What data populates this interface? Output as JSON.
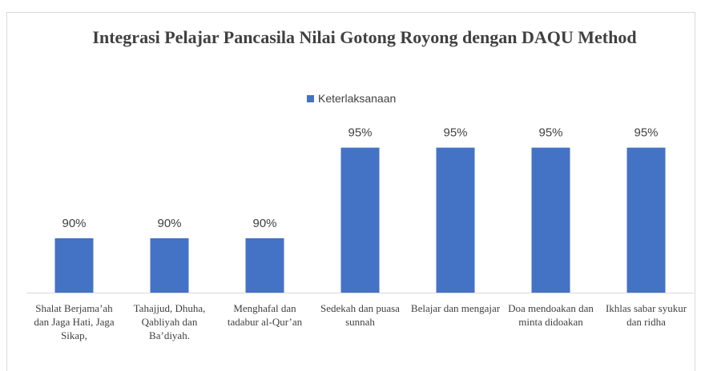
{
  "chart_data": {
    "type": "bar",
    "title": "Integrasi Pelajar Pancasila Nilai Gotong Royong dengan DAQU Method",
    "legend": "Keterlaksanaan",
    "categories": [
      "Shalat Berjama’ah dan Jaga Hati, Jaga Sikap,",
      "Tahajjud, Dhuha, Qabliyah dan Ba’diyah.",
      "Menghafal dan tadabur al-Qur’an",
      "Sedekah dan puasa sunnah",
      "Belajar dan mengajar",
      "Doa mendoakan dan minta didoakan",
      "Ikhlas sabar syukur dan ridha"
    ],
    "series": [
      {
        "name": "Keterlaksanaan",
        "color": "#4472c4",
        "values": [
          90,
          90,
          90,
          95,
          95,
          95,
          95
        ],
        "value_labels": [
          "90%",
          "90%",
          "90%",
          "95%",
          "95%",
          "95%",
          "95%"
        ]
      }
    ],
    "ylim": [
      87,
      96
    ],
    "legend_position": "top"
  }
}
